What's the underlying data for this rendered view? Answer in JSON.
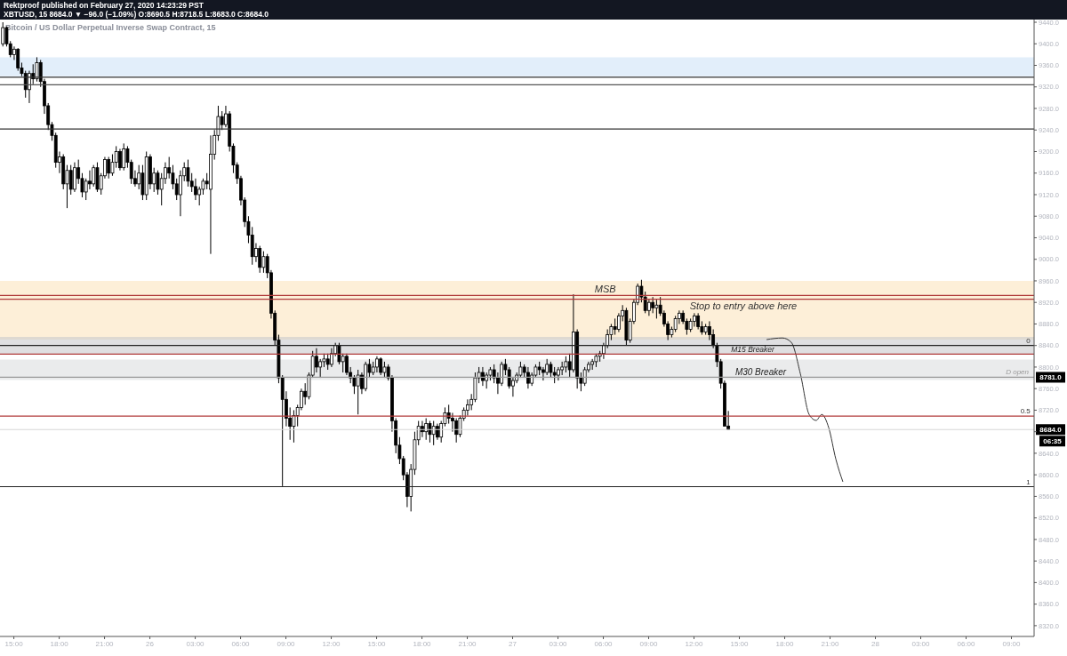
{
  "chart_data": {
    "type": "candlestick",
    "title": "Bitcoin / US Dollar Perpetual Inverse Swap Contract, 15",
    "subtitle": "XBTUSD, 15  8684.0 ▼ −96.0 (−1.09%) O:8690.5 H:8718.5 L:8683.0 C:8684.0",
    "color": "#000000",
    "annotations": [
      "Rektproof published on February 27, 2020 14:23:29 PST",
      {
        "text": "8781.0",
        "y": 8781
      },
      {
        "text": "8684.0",
        "y": 8684
      },
      "06:35",
      {
        "text": "0",
        "x": "2020-02-28T10:15",
        "y": 8840
      },
      {
        "text": "0.5",
        "x": "2020-02-28T10:15",
        "y": 8709
      },
      {
        "text": "1",
        "x": "2020-02-28T10:15",
        "y": 8578
      }
    ],
    "series": [
      {
        "type": "line",
        "color": "#333333",
        "x": [
          "2020-02-27T16:48",
          "2020-02-27T17:51",
          "2020-02-27T18:26",
          "2020-02-27T19:02",
          "2020-02-27T19:37",
          "2020-02-27T20:05",
          "2020-02-27T20:27",
          "2020-02-27T20:55",
          "2020-02-27T21:23",
          "2020-02-27T21:51"
        ],
        "values": [
          8851,
          8854,
          8846,
          8788,
          8712,
          8701,
          8712,
          8687,
          8629,
          8587
        ]
      }
    ],
    "x": [
      "2020-02-25T14:15",
      "2020-02-25T14:30",
      "2020-02-25T14:45",
      "2020-02-25T15:00",
      "2020-02-25T15:15",
      "2020-02-25T15:30",
      "2020-02-25T15:45",
      "2020-02-25T16:00",
      "2020-02-25T16:15",
      "2020-02-25T16:30",
      "2020-02-25T16:45",
      "2020-02-25T17:00",
      "2020-02-25T17:15",
      "2020-02-25T17:30",
      "2020-02-25T17:45",
      "2020-02-25T18:00",
      "2020-02-25T18:15",
      "2020-02-25T18:30",
      "2020-02-25T18:45",
      "2020-02-25T19:00",
      "2020-02-25T19:15",
      "2020-02-25T19:30",
      "2020-02-25T19:45",
      "2020-02-25T20:00",
      "2020-02-25T20:15",
      "2020-02-25T20:30",
      "2020-02-25T20:45",
      "2020-02-25T21:00",
      "2020-02-25T21:15",
      "2020-02-25T21:30",
      "2020-02-25T21:45",
      "2020-02-25T22:00",
      "2020-02-25T22:15",
      "2020-02-25T22:30",
      "2020-02-25T22:45",
      "2020-02-25T23:00",
      "2020-02-25T23:15",
      "2020-02-25T23:30",
      "2020-02-25T23:45",
      "2020-02-26T00:00",
      "2020-02-26T00:15",
      "2020-02-26T00:30",
      "2020-02-26T00:45",
      "2020-02-26T01:00",
      "2020-02-26T01:15",
      "2020-02-26T01:30",
      "2020-02-26T01:45",
      "2020-02-26T02:00",
      "2020-02-26T02:15",
      "2020-02-26T02:30",
      "2020-02-26T02:45",
      "2020-02-26T03:00",
      "2020-02-26T03:15",
      "2020-02-26T03:30",
      "2020-02-26T03:45",
      "2020-02-26T04:00",
      "2020-02-26T04:15",
      "2020-02-26T04:30",
      "2020-02-26T04:45",
      "2020-02-26T05:00",
      "2020-02-26T05:15",
      "2020-02-26T05:30",
      "2020-02-26T05:45",
      "2020-02-26T06:00",
      "2020-02-26T06:15",
      "2020-02-26T06:30",
      "2020-02-26T06:45",
      "2020-02-26T07:00",
      "2020-02-26T07:15",
      "2020-02-26T07:30",
      "2020-02-26T07:45",
      "2020-02-26T08:00",
      "2020-02-26T08:15",
      "2020-02-26T08:30",
      "2020-02-26T08:45",
      "2020-02-26T09:00",
      "2020-02-26T09:15",
      "2020-02-26T09:30",
      "2020-02-26T09:45",
      "2020-02-26T10:00",
      "2020-02-26T10:15",
      "2020-02-26T10:30",
      "2020-02-26T10:45",
      "2020-02-26T11:00",
      "2020-02-26T11:15",
      "2020-02-26T11:30",
      "2020-02-26T11:45",
      "2020-02-26T12:00",
      "2020-02-26T12:15",
      "2020-02-26T12:30",
      "2020-02-26T12:45",
      "2020-02-26T13:00",
      "2020-02-26T13:15",
      "2020-02-26T13:30",
      "2020-02-26T13:45",
      "2020-02-26T14:00",
      "2020-02-26T14:15",
      "2020-02-26T14:30",
      "2020-02-26T14:45",
      "2020-02-26T15:00",
      "2020-02-26T15:15",
      "2020-02-26T15:30",
      "2020-02-26T15:45",
      "2020-02-26T16:00",
      "2020-02-26T16:15",
      "2020-02-26T16:30",
      "2020-02-26T16:45",
      "2020-02-26T17:00",
      "2020-02-26T17:15",
      "2020-02-26T17:30",
      "2020-02-26T17:45",
      "2020-02-26T18:00",
      "2020-02-26T18:15",
      "2020-02-26T18:30",
      "2020-02-26T18:45",
      "2020-02-26T19:00",
      "2020-02-26T19:15",
      "2020-02-26T19:30",
      "2020-02-26T19:45",
      "2020-02-26T20:00",
      "2020-02-26T20:15",
      "2020-02-26T20:30",
      "2020-02-26T20:45",
      "2020-02-26T21:00",
      "2020-02-26T21:15",
      "2020-02-26T21:30",
      "2020-02-26T21:45",
      "2020-02-26T22:00",
      "2020-02-26T22:15",
      "2020-02-26T22:30",
      "2020-02-26T22:45",
      "2020-02-26T23:00",
      "2020-02-26T23:15",
      "2020-02-26T23:30",
      "2020-02-26T23:45",
      "2020-02-27T00:00",
      "2020-02-27T00:15",
      "2020-02-27T00:30",
      "2020-02-27T00:45",
      "2020-02-27T01:00",
      "2020-02-27T01:15",
      "2020-02-27T01:30",
      "2020-02-27T01:45",
      "2020-02-27T02:00",
      "2020-02-27T02:15",
      "2020-02-27T02:30",
      "2020-02-27T02:45",
      "2020-02-27T03:00",
      "2020-02-27T03:15",
      "2020-02-27T03:30",
      "2020-02-27T03:45",
      "2020-02-27T04:00",
      "2020-02-27T04:15",
      "2020-02-27T04:30",
      "2020-02-27T04:45",
      "2020-02-27T05:00",
      "2020-02-27T05:15",
      "2020-02-27T05:30",
      "2020-02-27T05:45",
      "2020-02-27T06:00",
      "2020-02-27T06:15",
      "2020-02-27T06:30",
      "2020-02-27T06:45",
      "2020-02-27T07:00",
      "2020-02-27T07:15",
      "2020-02-27T07:30",
      "2020-02-27T07:45",
      "2020-02-27T08:00",
      "2020-02-27T08:15",
      "2020-02-27T08:30",
      "2020-02-27T08:45",
      "2020-02-27T09:00",
      "2020-02-27T09:15",
      "2020-02-27T09:30",
      "2020-02-27T09:45",
      "2020-02-27T10:00",
      "2020-02-27T10:15",
      "2020-02-27T10:30",
      "2020-02-27T10:45",
      "2020-02-27T11:00",
      "2020-02-27T11:15",
      "2020-02-27T11:30",
      "2020-02-27T11:45",
      "2020-02-27T12:00",
      "2020-02-27T12:15",
      "2020-02-27T12:30",
      "2020-02-27T12:45",
      "2020-02-27T13:00",
      "2020-02-27T13:15",
      "2020-02-27T13:30",
      "2020-02-27T13:45",
      "2020-02-27T14:00",
      "2020-02-27T14:15"
    ],
    "ohlc": [
      [
        9400,
        9440,
        9395,
        9430
      ],
      [
        9430,
        9432,
        9395,
        9400
      ],
      [
        9400,
        9405,
        9375,
        9380
      ],
      [
        9380,
        9395,
        9370,
        9390
      ],
      [
        9390,
        9392,
        9350,
        9355
      ],
      [
        9355,
        9365,
        9340,
        9345
      ],
      [
        9345,
        9350,
        9300,
        9315
      ],
      [
        9315,
        9350,
        9290,
        9345
      ],
      [
        9345,
        9362,
        9325,
        9335
      ],
      [
        9335,
        9375,
        9330,
        9365
      ],
      [
        9365,
        9370,
        9320,
        9330
      ],
      [
        9330,
        9335,
        9270,
        9285
      ],
      [
        9285,
        9290,
        9240,
        9250
      ],
      [
        9250,
        9255,
        9220,
        9230
      ],
      [
        9230,
        9235,
        9170,
        9180
      ],
      [
        9180,
        9200,
        9160,
        9190
      ],
      [
        9190,
        9195,
        9130,
        9140
      ],
      [
        9140,
        9175,
        9095,
        9165
      ],
      [
        9165,
        9175,
        9120,
        9130
      ],
      [
        9130,
        9180,
        9125,
        9170
      ],
      [
        9170,
        9185,
        9140,
        9150
      ],
      [
        9150,
        9160,
        9115,
        9125
      ],
      [
        9125,
        9150,
        9110,
        9145
      ],
      [
        9145,
        9165,
        9130,
        9140
      ],
      [
        9140,
        9175,
        9135,
        9170
      ],
      [
        9170,
        9180,
        9125,
        9130
      ],
      [
        9130,
        9160,
        9120,
        9155
      ],
      [
        9155,
        9190,
        9150,
        9185
      ],
      [
        9185,
        9190,
        9150,
        9160
      ],
      [
        9160,
        9195,
        9155,
        9180
      ],
      [
        9180,
        9210,
        9170,
        9200
      ],
      [
        9200,
        9205,
        9165,
        9170
      ],
      [
        9170,
        9215,
        9165,
        9205
      ],
      [
        9205,
        9210,
        9170,
        9180
      ],
      [
        9180,
        9185,
        9140,
        9150
      ],
      [
        9150,
        9165,
        9135,
        9140
      ],
      [
        9140,
        9175,
        9130,
        9160
      ],
      [
        9160,
        9175,
        9110,
        9120
      ],
      [
        9120,
        9200,
        9110,
        9190
      ],
      [
        9190,
        9195,
        9130,
        9140
      ],
      [
        9140,
        9170,
        9125,
        9160
      ],
      [
        9160,
        9165,
        9120,
        9130
      ],
      [
        9130,
        9160,
        9100,
        9150
      ],
      [
        9150,
        9180,
        9140,
        9170
      ],
      [
        9170,
        9190,
        9150,
        9160
      ],
      [
        9160,
        9175,
        9130,
        9140
      ],
      [
        9140,
        9150,
        9110,
        9120
      ],
      [
        9120,
        9165,
        9080,
        9155
      ],
      [
        9155,
        9180,
        9145,
        9170
      ],
      [
        9170,
        9185,
        9135,
        9145
      ],
      [
        9145,
        9160,
        9125,
        9135
      ],
      [
        9135,
        9150,
        9110,
        9120
      ],
      [
        9120,
        9135,
        9100,
        9130
      ],
      [
        9130,
        9150,
        9120,
        9145
      ],
      [
        9145,
        9160,
        9130,
        9140
      ],
      [
        9130,
        9230,
        9010,
        9195
      ],
      [
        9195,
        9240,
        9185,
        9230
      ],
      [
        9230,
        9285,
        9220,
        9265
      ],
      [
        9265,
        9275,
        9240,
        9250
      ],
      [
        9250,
        9285,
        9245,
        9270
      ],
      [
        9270,
        9275,
        9200,
        9210
      ],
      [
        9210,
        9215,
        9160,
        9175
      ],
      [
        9175,
        9180,
        9140,
        9150
      ],
      [
        9150,
        9155,
        9100,
        9110
      ],
      [
        9110,
        9115,
        9060,
        9070
      ],
      [
        9070,
        9080,
        9030,
        9045
      ],
      [
        9045,
        9060,
        8990,
        9005
      ],
      [
        9005,
        9030,
        8995,
        9020
      ],
      [
        9020,
        9025,
        8975,
        8985
      ],
      [
        8985,
        9015,
        8975,
        9005
      ],
      [
        9005,
        9010,
        8965,
        8975
      ],
      [
        8975,
        8980,
        8890,
        8900
      ],
      [
        8900,
        8905,
        8840,
        8850
      ],
      [
        8850,
        8860,
        8770,
        8780
      ],
      [
        8780,
        8785,
        8579,
        8740
      ],
      [
        8740,
        8755,
        8690,
        8705
      ],
      [
        8705,
        8725,
        8665,
        8690
      ],
      [
        8690,
        8720,
        8660,
        8710
      ],
      [
        8710,
        8730,
        8690,
        8725
      ],
      [
        8725,
        8760,
        8720,
        8755
      ],
      [
        8755,
        8770,
        8730,
        8745
      ],
      [
        8745,
        8790,
        8740,
        8785
      ],
      [
        8785,
        8830,
        8780,
        8820
      ],
      [
        8820,
        8835,
        8790,
        8800
      ],
      [
        8800,
        8815,
        8780,
        8810
      ],
      [
        8810,
        8825,
        8800,
        8815
      ],
      [
        8815,
        8825,
        8795,
        8805
      ],
      [
        8805,
        8835,
        8800,
        8825
      ],
      [
        8825,
        8845,
        8820,
        8840
      ],
      [
        8840,
        8845,
        8805,
        8810
      ],
      [
        8810,
        8825,
        8790,
        8820
      ],
      [
        8820,
        8825,
        8785,
        8790
      ],
      [
        8790,
        8800,
        8770,
        8780
      ],
      [
        8780,
        8785,
        8750,
        8765
      ],
      [
        8765,
        8795,
        8712,
        8785
      ],
      [
        8785,
        8790,
        8750,
        8760
      ],
      [
        8760,
        8810,
        8755,
        8805
      ],
      [
        8805,
        8815,
        8780,
        8790
      ],
      [
        8790,
        8810,
        8785,
        8800
      ],
      [
        8800,
        8820,
        8790,
        8815
      ],
      [
        8815,
        8818,
        8785,
        8790
      ],
      [
        8790,
        8810,
        8780,
        8800
      ],
      [
        8800,
        8805,
        8775,
        8780
      ],
      [
        8780,
        8785,
        8680,
        8700
      ],
      [
        8700,
        8705,
        8640,
        8655
      ],
      [
        8655,
        8670,
        8620,
        8630
      ],
      [
        8630,
        8635,
        8590,
        8600
      ],
      [
        8600,
        8605,
        8540,
        8560
      ],
      [
        8560,
        8620,
        8532,
        8610
      ],
      [
        8610,
        8680,
        8600,
        8665
      ],
      [
        8665,
        8700,
        8655,
        8690
      ],
      [
        8690,
        8700,
        8670,
        8680
      ],
      [
        8680,
        8705,
        8665,
        8695
      ],
      [
        8695,
        8700,
        8660,
        8675
      ],
      [
        8675,
        8700,
        8655,
        8690
      ],
      [
        8690,
        8695,
        8665,
        8670
      ],
      [
        8670,
        8700,
        8660,
        8695
      ],
      [
        8695,
        8725,
        8690,
        8715
      ],
      [
        8715,
        8730,
        8695,
        8705
      ],
      [
        8705,
        8715,
        8680,
        8700
      ],
      [
        8700,
        8705,
        8660,
        8675
      ],
      [
        8675,
        8710,
        8670,
        8705
      ],
      [
        8705,
        8725,
        8700,
        8720
      ],
      [
        8720,
        8740,
        8710,
        8730
      ],
      [
        8730,
        8750,
        8720,
        8740
      ],
      [
        8740,
        8790,
        8735,
        8780
      ],
      [
        8780,
        8800,
        8770,
        8790
      ],
      [
        8790,
        8800,
        8765,
        8775
      ],
      [
        8775,
        8790,
        8760,
        8785
      ],
      [
        8785,
        8800,
        8775,
        8795
      ],
      [
        8795,
        8805,
        8770,
        8780
      ],
      [
        8780,
        8790,
        8750,
        8770
      ],
      [
        8770,
        8810,
        8765,
        8805
      ],
      [
        8805,
        8815,
        8785,
        8795
      ],
      [
        8795,
        8800,
        8760,
        8765
      ],
      [
        8765,
        8780,
        8745,
        8775
      ],
      [
        8775,
        8790,
        8770,
        8785
      ],
      [
        8785,
        8810,
        8780,
        8800
      ],
      [
        8800,
        8805,
        8780,
        8790
      ],
      [
        8790,
        8800,
        8760,
        8770
      ],
      [
        8770,
        8790,
        8765,
        8785
      ],
      [
        8785,
        8805,
        8780,
        8800
      ],
      [
        8800,
        8810,
        8785,
        8795
      ],
      [
        8795,
        8800,
        8775,
        8790
      ],
      [
        8790,
        8815,
        8785,
        8805
      ],
      [
        8805,
        8810,
        8780,
        8790
      ],
      [
        8790,
        8800,
        8770,
        8785
      ],
      [
        8785,
        8800,
        8775,
        8795
      ],
      [
        8795,
        8810,
        8785,
        8800
      ],
      [
        8800,
        8820,
        8790,
        8810
      ],
      [
        8810,
        8825,
        8780,
        8795
      ],
      [
        8795,
        8935,
        8790,
        8865
      ],
      [
        8865,
        8870,
        8760,
        8780
      ],
      [
        8780,
        8790,
        8755,
        8770
      ],
      [
        8770,
        8800,
        8765,
        8795
      ],
      [
        8795,
        8810,
        8790,
        8805
      ],
      [
        8805,
        8815,
        8795,
        8810
      ],
      [
        8810,
        8825,
        8800,
        8820
      ],
      [
        8820,
        8830,
        8810,
        8825
      ],
      [
        8825,
        8845,
        8815,
        8840
      ],
      [
        8840,
        8870,
        8835,
        8860
      ],
      [
        8860,
        8880,
        8850,
        8875
      ],
      [
        8875,
        8890,
        8860,
        8870
      ],
      [
        8870,
        8900,
        8865,
        8895
      ],
      [
        8895,
        8915,
        8885,
        8905
      ],
      [
        8905,
        8910,
        8840,
        8850
      ],
      [
        8850,
        8890,
        8845,
        8885
      ],
      [
        8885,
        8925,
        8880,
        8920
      ],
      [
        8920,
        8955,
        8915,
        8950
      ],
      [
        8950,
        8962,
        8920,
        8930
      ],
      [
        8930,
        8940,
        8900,
        8905
      ],
      [
        8905,
        8925,
        8895,
        8920
      ],
      [
        8920,
        8930,
        8900,
        8910
      ],
      [
        8910,
        8925,
        8890,
        8915
      ],
      [
        8915,
        8930,
        8895,
        8900
      ],
      [
        8900,
        8905,
        8875,
        8880
      ],
      [
        8880,
        8885,
        8850,
        8860
      ],
      [
        8860,
        8875,
        8855,
        8870
      ],
      [
        8870,
        8895,
        8865,
        8890
      ],
      [
        8890,
        8905,
        8880,
        8900
      ],
      [
        8900,
        8905,
        8880,
        8885
      ],
      [
        8885,
        8890,
        8860,
        8870
      ],
      [
        8870,
        8890,
        8865,
        8885
      ],
      [
        8885,
        8900,
        8875,
        8895
      ],
      [
        8895,
        8900,
        8870,
        8875
      ],
      [
        8875,
        8885,
        8860,
        8865
      ],
      [
        8865,
        8880,
        8860,
        8875
      ],
      [
        8875,
        8885,
        8850,
        8860
      ],
      [
        8860,
        8870,
        8835,
        8840
      ],
      [
        8840,
        8845,
        8800,
        8810
      ],
      [
        8810,
        8815,
        8760,
        8770
      ],
      [
        8770,
        8775,
        8690,
        8690.5
      ],
      [
        8690.5,
        8718.5,
        8683,
        8684
      ]
    ],
    "xlim": [
      "2020-02-25T14:05",
      "2020-02-28T10:30"
    ],
    "xticks": [
      {
        "value": "2020-02-25T15:00",
        "label": "15:00"
      },
      {
        "value": "2020-02-25T18:00",
        "label": "18:00"
      },
      {
        "value": "2020-02-25T21:00",
        "label": "21:00"
      },
      {
        "value": "2020-02-26T00:00",
        "label": "26"
      },
      {
        "value": "2020-02-26T03:00",
        "label": "03:00"
      },
      {
        "value": "2020-02-26T06:00",
        "label": "06:00"
      },
      {
        "value": "2020-02-26T09:00",
        "label": "09:00"
      },
      {
        "value": "2020-02-26T12:00",
        "label": "12:00"
      },
      {
        "value": "2020-02-26T15:00",
        "label": "15:00"
      },
      {
        "value": "2020-02-26T18:00",
        "label": "18:00"
      },
      {
        "value": "2020-02-26T21:00",
        "label": "21:00"
      },
      {
        "value": "2020-02-27T00:00",
        "label": "27"
      },
      {
        "value": "2020-02-27T03:00",
        "label": "03:00"
      },
      {
        "value": "2020-02-27T06:00",
        "label": "06:00"
      },
      {
        "value": "2020-02-27T09:00",
        "label": "09:00"
      },
      {
        "value": "2020-02-27T12:00",
        "label": "12:00"
      },
      {
        "value": "2020-02-27T15:00",
        "label": "15:00"
      },
      {
        "value": "2020-02-27T18:00",
        "label": "18:00"
      },
      {
        "value": "2020-02-27T21:00",
        "label": "21:00"
      },
      {
        "value": "2020-02-28T00:00",
        "label": "28"
      },
      {
        "value": "2020-02-28T03:00",
        "label": "03:00"
      },
      {
        "value": "2020-02-28T06:00",
        "label": "06:00"
      },
      {
        "value": "2020-02-28T09:00",
        "label": "09:00"
      }
    ],
    "ylim": [
      8300,
      9445
    ],
    "yticks": [
      {
        "value": 8320,
        "label": "8320.0"
      },
      {
        "value": 8360,
        "label": "8360.0"
      },
      {
        "value": 8400,
        "label": "8400.0"
      },
      {
        "value": 8440,
        "label": "8440.0"
      },
      {
        "value": 8480,
        "label": "8480.0"
      },
      {
        "value": 8520,
        "label": "8520.0"
      },
      {
        "value": 8560,
        "label": "8560.0"
      },
      {
        "value": 8600,
        "label": "8600.0"
      },
      {
        "value": 8640,
        "label": "8640.0"
      },
      {
        "value": 8680,
        "label": null
      },
      {
        "value": 8720,
        "label": "8720.0"
      },
      {
        "value": 8760,
        "label": "8760.0"
      },
      {
        "value": 8800,
        "label": "8800.0"
      },
      {
        "value": 8840,
        "label": "8840.0"
      },
      {
        "value": 8880,
        "label": "8880.0"
      },
      {
        "value": 8920,
        "label": "8920.0"
      },
      {
        "value": 8960,
        "label": "8960.0"
      },
      {
        "value": 9000,
        "label": "9000.0"
      },
      {
        "value": 9040,
        "label": "9040.0"
      },
      {
        "value": 9080,
        "label": "9080.0"
      },
      {
        "value": 9120,
        "label": "9120.0"
      },
      {
        "value": 9160,
        "label": "9160.0"
      },
      {
        "value": 9200,
        "label": "9200.0"
      },
      {
        "value": 9240,
        "label": "9240.0"
      },
      {
        "value": 9280,
        "label": "9280.0"
      },
      {
        "value": 9320,
        "label": "9320.0"
      },
      {
        "value": 9360,
        "label": "9360.0"
      },
      {
        "value": 9400,
        "label": "9400.0"
      },
      {
        "value": 9440,
        "label": "9440.0"
      }
    ],
    "bands": [
      {
        "axis": "y",
        "from": 9340,
        "to": 9375,
        "color": "#cfe3f6"
      },
      {
        "axis": "y",
        "from": 8851,
        "to": 8960,
        "color": "#fce5be"
      },
      {
        "axis": "y",
        "from": 8824,
        "to": 8856,
        "label": "M15 Breaker",
        "color": "#c9cacd"
      },
      {
        "axis": "y",
        "from": 8776,
        "to": 8814,
        "label": "M30 Breaker",
        "color": "#dcdde0"
      }
    ],
    "ref_lines": [
      {
        "axis": "y",
        "value": 9338,
        "color": "#333333"
      },
      {
        "axis": "y",
        "value": 9324,
        "color": "#555555"
      },
      {
        "axis": "y",
        "value": 9242,
        "color": "#333333"
      },
      {
        "axis": "y",
        "value": 8840,
        "color": "#222222"
      },
      {
        "axis": "y",
        "value": 8781,
        "label": "D open",
        "color": "#9a9a9a"
      },
      {
        "axis": "y",
        "value": 8709,
        "color": "#b03a3a"
      },
      {
        "axis": "y",
        "value": 8578,
        "color": "#222222"
      },
      {
        "axis": "y",
        "value": 8933,
        "label": "MSB",
        "color": "#b03a3a"
      },
      {
        "axis": "y",
        "value": 8926,
        "label": "Stop to entry above here",
        "color": "#b03a3a"
      },
      {
        "axis": "y",
        "value": 8824,
        "color": "#b03a3a"
      },
      {
        "axis": "y",
        "value": 8684,
        "color": "#d6d6d6"
      }
    ]
  }
}
